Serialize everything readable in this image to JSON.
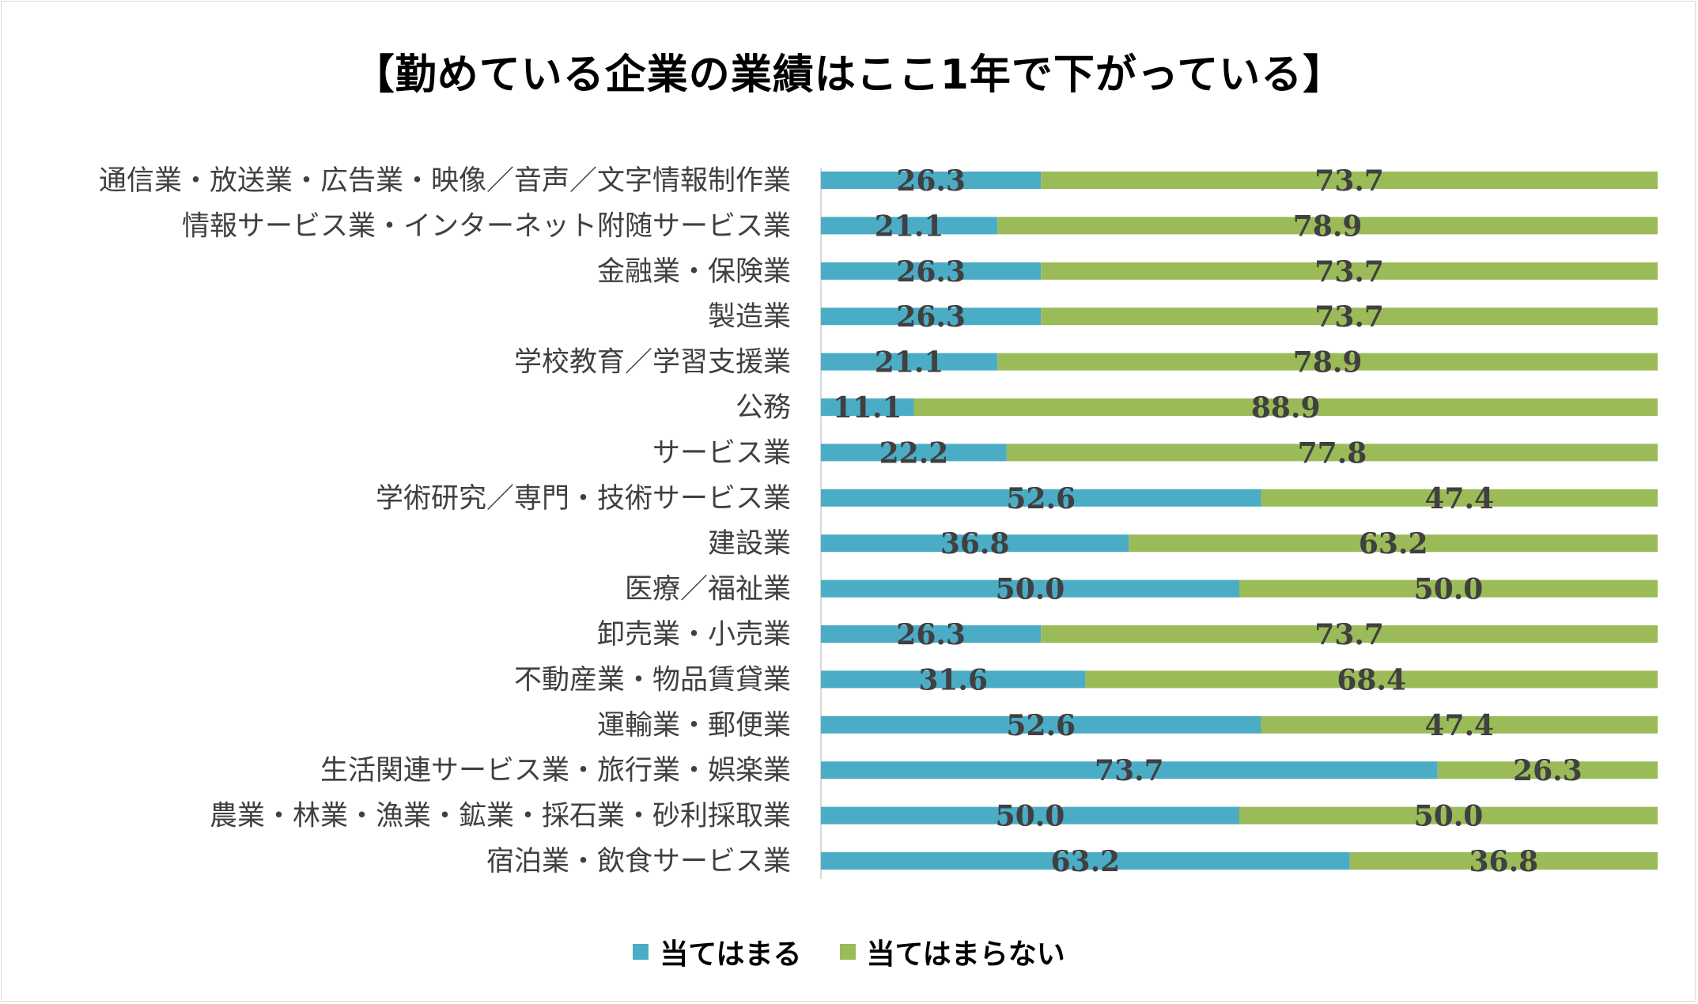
{
  "chart_data": {
    "type": "bar",
    "orientation": "horizontal",
    "stacked": "percent",
    "title": "【勤めている企業の業績はここ1年で下がっている】",
    "categories": [
      "通信業・放送業・広告業・映像／音声／文字情報制作業",
      "情報サービス業・インターネット附随サービス業",
      "金融業・保険業",
      "製造業",
      "学校教育／学習支援業",
      "公務",
      "サービス業",
      "学術研究／専門・技術サービス業",
      "建設業",
      "医療／福祉業",
      "卸売業・小売業",
      "不動産業・物品賃貸業",
      "運輸業・郵便業",
      "生活関連サービス業・旅行業・娯楽業",
      "農業・林業・漁業・鉱業・採石業・砂利採取業",
      "宿泊業・飲食サービス業"
    ],
    "series": [
      {
        "name": "当てはまる",
        "color": "#4bacc6",
        "values": [
          26.3,
          21.1,
          26.3,
          26.3,
          21.1,
          11.1,
          22.2,
          52.6,
          36.8,
          50.0,
          26.3,
          31.6,
          52.6,
          73.7,
          50.0,
          63.2
        ],
        "labels": [
          "26.3",
          "21.1",
          "26.3",
          "26.3",
          "21.1",
          "11.1",
          "22.2",
          "52.6",
          "36.8",
          "50.0",
          "26.3",
          "31.6",
          "52.6",
          "73.7",
          "50.0",
          "63.2"
        ]
      },
      {
        "name": "当てはまらない",
        "color": "#9bbb59",
        "values": [
          73.7,
          78.9,
          73.7,
          73.7,
          78.9,
          88.9,
          77.8,
          47.4,
          63.2,
          50.0,
          73.7,
          68.4,
          47.4,
          26.3,
          50.0,
          36.8
        ],
        "labels": [
          "73.7",
          "78.9",
          "73.7",
          "73.7",
          "78.9",
          "88.9",
          "77.8",
          "47.4",
          "63.2",
          "50.0",
          "73.7",
          "68.4",
          "47.4",
          "26.3",
          "50.0",
          "36.8"
        ]
      }
    ],
    "xlim": [
      0,
      100
    ],
    "xlabel": "",
    "ylabel": "",
    "grid": false,
    "legend": "bottom-center"
  }
}
